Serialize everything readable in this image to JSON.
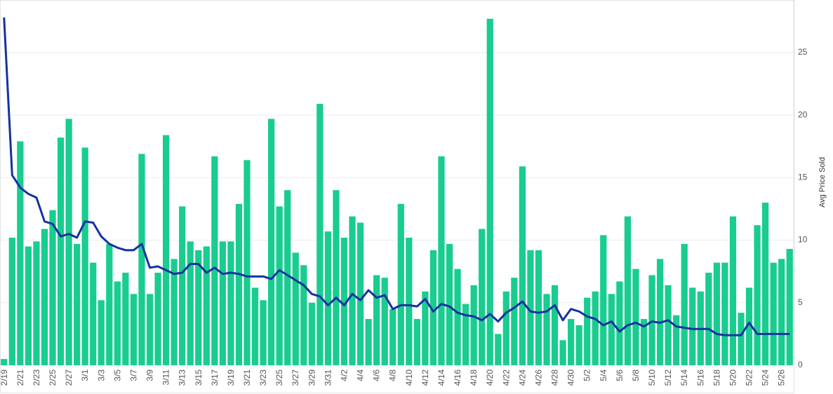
{
  "chart_data": {
    "type": "bar",
    "ylabel": "Avg Price Sold",
    "categories": [
      "2/19",
      null,
      "2/21",
      null,
      "2/23",
      null,
      "2/25",
      null,
      "2/27",
      null,
      "3/1",
      null,
      "3/3",
      null,
      "3/5",
      null,
      "3/7",
      null,
      "3/9",
      null,
      "3/11",
      null,
      "3/13",
      null,
      "3/15",
      null,
      "3/17",
      null,
      "3/19",
      null,
      "3/21",
      null,
      "3/23",
      null,
      "3/25",
      null,
      "3/27",
      null,
      "3/29",
      null,
      "3/31",
      null,
      "4/2",
      null,
      "4/4",
      null,
      "4/6",
      null,
      "4/8",
      null,
      "4/10",
      null,
      "4/12",
      null,
      "4/14",
      null,
      "4/16",
      null,
      "4/18",
      null,
      "4/20",
      null,
      "4/22",
      null,
      "4/24",
      null,
      "4/26",
      null,
      "4/28",
      null,
      "4/30",
      null,
      "5/2",
      null,
      "5/4",
      null,
      "5/6",
      null,
      "5/8",
      null,
      "5/10",
      null,
      "5/12",
      null,
      "5/14",
      null,
      "5/16",
      null,
      "5/18",
      null,
      "5/20",
      null,
      "5/22",
      null,
      "5/24",
      null,
      "5/26",
      null
    ],
    "series": [
      {
        "type": "bar",
        "color": "#19cc8f",
        "values": [
          0.5,
          10.2,
          17.9,
          9.5,
          9.9,
          10.9,
          12.4,
          18.2,
          19.7,
          9.7,
          17.4,
          8.2,
          5.2,
          9.7,
          6.7,
          7.4,
          5.7,
          16.9,
          5.7,
          7.4,
          18.4,
          8.5,
          12.7,
          9.9,
          9.2,
          9.5,
          16.7,
          9.9,
          9.9,
          12.9,
          16.4,
          6.2,
          5.2,
          19.7,
          12.7,
          14.0,
          9.0,
          8.0,
          5.0,
          20.9,
          10.7,
          14.0,
          10.2,
          11.9,
          11.4,
          3.7,
          7.2,
          7.0,
          4.5,
          12.9,
          10.2,
          3.7,
          5.9,
          9.2,
          16.7,
          9.7,
          7.7,
          4.9,
          6.4,
          10.9,
          27.7,
          2.5,
          5.9,
          7.0,
          15.9,
          9.2,
          9.2,
          5.7,
          6.4,
          2.0,
          3.7,
          3.2,
          5.4,
          5.9,
          10.4,
          5.7,
          6.7,
          11.9,
          7.7,
          3.7,
          7.2,
          8.5,
          6.4,
          4.0,
          9.7,
          6.2,
          5.9,
          7.4,
          8.2,
          8.2,
          11.9,
          4.2,
          6.2,
          11.2,
          13.0,
          8.2,
          8.5,
          9.3
        ]
      },
      {
        "type": "line",
        "color": "#1432a0",
        "values": [
          27.8,
          15.2,
          14.2,
          13.7,
          13.4,
          11.5,
          11.3,
          10.3,
          10.5,
          10.2,
          11.5,
          11.4,
          10.3,
          9.7,
          9.4,
          9.2,
          9.2,
          9.7,
          7.8,
          7.9,
          7.6,
          7.3,
          7.4,
          8.1,
          8.1,
          7.4,
          7.8,
          7.3,
          7.4,
          7.3,
          7.1,
          7.1,
          7.1,
          6.9,
          7.6,
          7.2,
          6.8,
          6.4,
          5.7,
          5.5,
          4.8,
          5.4,
          4.8,
          5.7,
          5.2,
          6.0,
          5.4,
          5.6,
          4.5,
          4.8,
          4.8,
          4.7,
          5.3,
          4.3,
          4.9,
          4.7,
          4.2,
          4.0,
          3.9,
          3.6,
          4.1,
          3.5,
          4.2,
          4.6,
          5.1,
          4.3,
          4.2,
          4.3,
          4.8,
          3.6,
          4.5,
          4.3,
          3.9,
          3.7,
          3.2,
          3.5,
          2.7,
          3.2,
          3.4,
          3.1,
          3.5,
          3.4,
          3.6,
          3.1,
          3.0,
          2.9,
          2.9,
          2.9,
          2.5,
          2.4,
          2.4,
          2.4,
          3.4,
          2.5,
          2.5,
          2.5,
          2.5,
          2.5
        ]
      }
    ],
    "ylim": [
      0,
      29.2
    ],
    "yticks": [
      0,
      5,
      10,
      15,
      20,
      25
    ],
    "grid": true
  }
}
